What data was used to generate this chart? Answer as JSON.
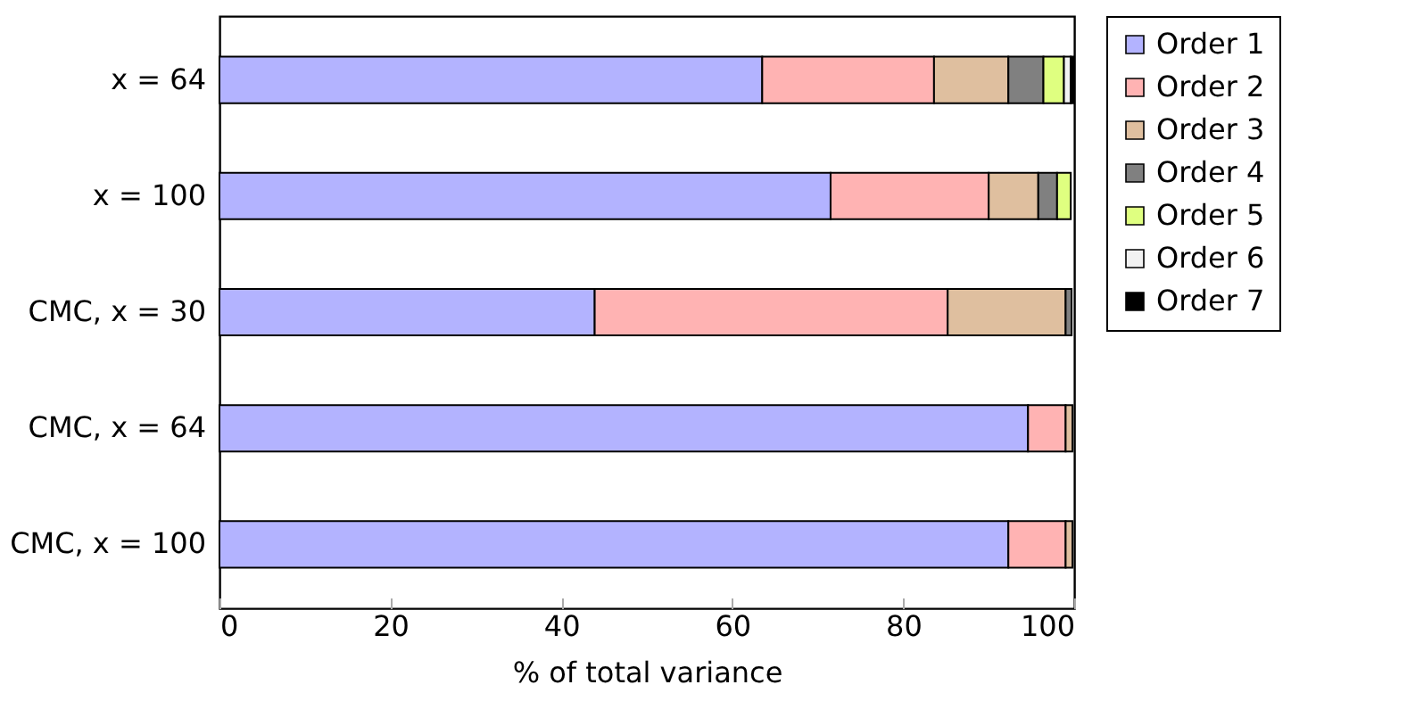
{
  "chart_data": {
    "type": "bar",
    "orientation": "horizontal",
    "stacked": true,
    "xlabel": "% of total variance",
    "categories": [
      "x = 64",
      "x = 100",
      "CMC, x = 30",
      "CMC, x = 64",
      "CMC, x = 100"
    ],
    "series": [
      {
        "name": "Order 1",
        "color": "#b3b3ff",
        "values": [
          63.5,
          71.5,
          43.9,
          94.6,
          92.3
        ]
      },
      {
        "name": "Order 2",
        "color": "#ffb3b3",
        "values": [
          20.1,
          18.5,
          41.3,
          4.4,
          6.7
        ]
      },
      {
        "name": "Order 3",
        "color": "#dfbf9f",
        "values": [
          8.7,
          5.8,
          13.8,
          0.8,
          0.8
        ]
      },
      {
        "name": "Order 4",
        "color": "#808080",
        "values": [
          4.1,
          2.2,
          0.7,
          null,
          null
        ]
      },
      {
        "name": "Order 5",
        "color": "#dfff80",
        "values": [
          2.4,
          1.6,
          null,
          null,
          null
        ]
      },
      {
        "name": "Order 6",
        "color": "#f2f2f2",
        "values": [
          0.8,
          null,
          null,
          null,
          null
        ]
      },
      {
        "name": "Order 7",
        "color": "#000000",
        "values": [
          0.4,
          null,
          null,
          null,
          null
        ]
      }
    ],
    "xlim": [
      0,
      100
    ],
    "xticks": [
      0,
      20,
      40,
      60,
      80,
      100
    ],
    "grid": false,
    "legend": "right"
  }
}
